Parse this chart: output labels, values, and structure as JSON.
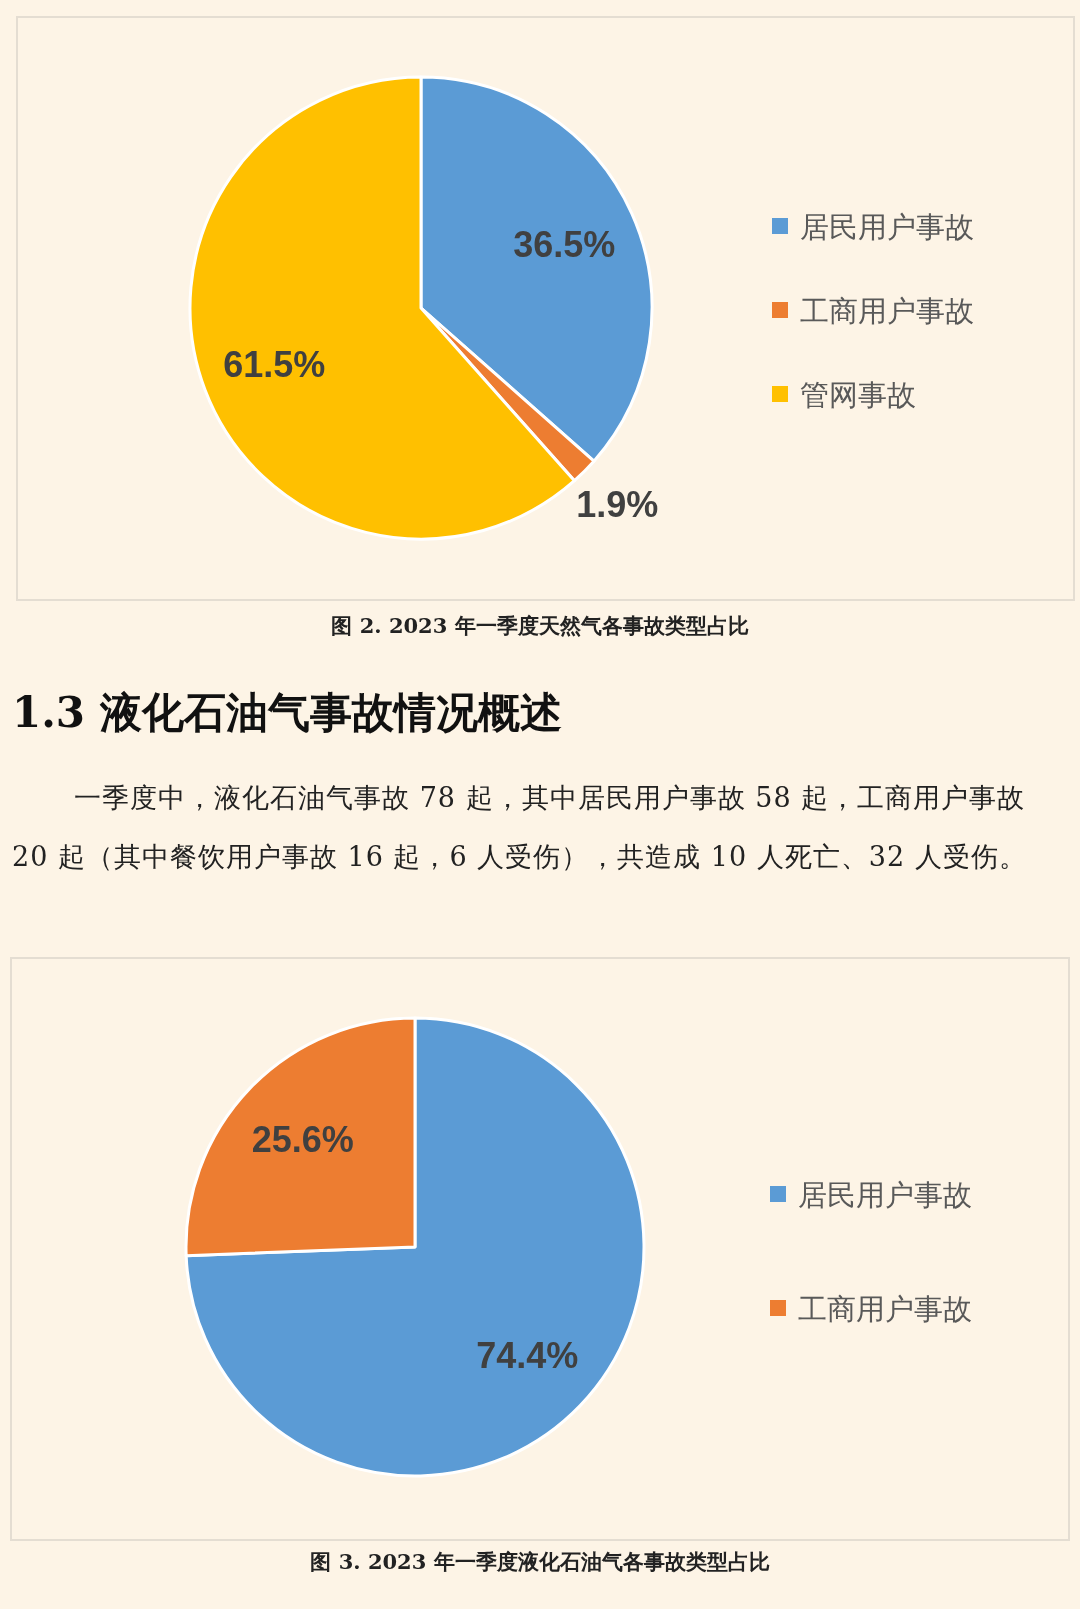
{
  "chart_data": [
    {
      "type": "pie",
      "title": "图 2. 2023 年一季度天然气各事故类型占比",
      "categories": [
        "居民用户事故",
        "工商用户事故",
        "管网事故"
      ],
      "values": [
        36.5,
        1.9,
        61.5
      ],
      "value_labels": [
        "36.5%",
        "1.9%",
        "61.5%"
      ],
      "colors": [
        "#5b9bd5",
        "#ed7d31",
        "#ffc000"
      ],
      "legend": "right"
    },
    {
      "type": "pie",
      "title": "图 3. 2023 年一季度液化石油气各事故类型占比",
      "annotations": [
        "1.3 液化石油气事故情况概述",
        "一季度中，液化石油气事故 78 起，其中居民用户事故 58 起，工商用户事故 20 起（其中餐饮用户事故 16 起，6 人受伤），共造成 10 人死亡、32 人受伤。"
      ],
      "categories": [
        "居民用户事故",
        "工商用户事故"
      ],
      "values": [
        74.4,
        25.6
      ],
      "value_labels": [
        "74.4%",
        "25.6%"
      ],
      "colors": [
        "#5b9bd5",
        "#ed7d31"
      ],
      "legend": "right"
    }
  ]
}
